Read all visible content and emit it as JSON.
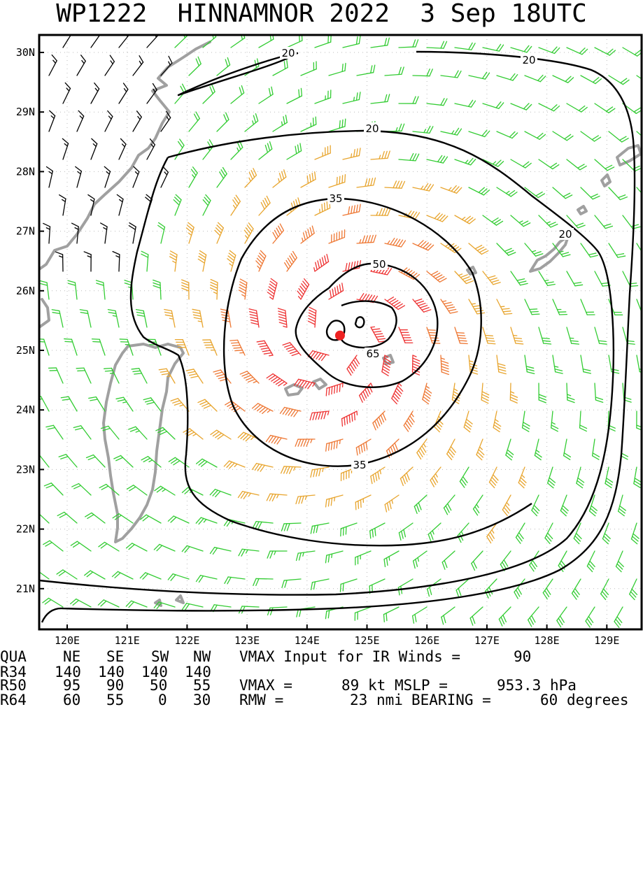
{
  "title": "WP1222  HINNAMNOR 2022  3 Sep 18UTC",
  "map": {
    "lon_labels": [
      "120E",
      "121E",
      "122E",
      "123E",
      "124E",
      "125E",
      "126E",
      "127E",
      "128E",
      "129E"
    ],
    "lat_labels": [
      "30N",
      "29N",
      "28N",
      "27N",
      "26N",
      "25N",
      "24N",
      "23N",
      "22N",
      "21N"
    ],
    "storm_center": {
      "lon": 124.55,
      "lat": 25.25
    },
    "colors": {
      "c20": "#000000",
      "c35": "#33cc33",
      "c50": "#e8a52e",
      "c64": "#ee7733",
      "c65": "#ee3333",
      "land": "#a0a0a0",
      "center": "#ee2222"
    },
    "contours": [
      {
        "label": "20",
        "value": 20
      },
      {
        "label": "20",
        "value": 20
      },
      {
        "label": "20",
        "value": 20
      },
      {
        "label": "20",
        "value": 20
      },
      {
        "label": "35",
        "value": 35
      },
      {
        "label": "35",
        "value": 35
      },
      {
        "label": "50",
        "value": 50
      },
      {
        "label": "65",
        "value": 65
      }
    ]
  },
  "table": {
    "header": {
      "qua": "QUA",
      "ne": "NE",
      "se": "SE",
      "sw": "SW",
      "nw": "NW",
      "vmax_input_label": "VMAX Input for IR Winds =",
      "vmax_input_value": "90"
    },
    "r34": {
      "label": "R34",
      "ne": "140",
      "se": "140",
      "sw": "140",
      "nw": "140"
    },
    "r50": {
      "label": "R50",
      "ne": "95",
      "se": "90",
      "sw": "50",
      "nw": "55",
      "vmax_label": "VMAX =",
      "vmax_value": "89",
      "vmax_unit": "kt",
      "mslp_label": "MSLP =",
      "mslp_value": "953.3",
      "mslp_unit": "hPa"
    },
    "r64": {
      "label": "R64",
      "ne": "60",
      "se": "55",
      "sw": "0",
      "nw": "30",
      "rmw_label": "RMW =",
      "rmw_value": "23",
      "rmw_unit": "nmi",
      "bearing_label": "BEARING =",
      "bearing_value": "60",
      "bearing_unit": "degrees"
    }
  }
}
